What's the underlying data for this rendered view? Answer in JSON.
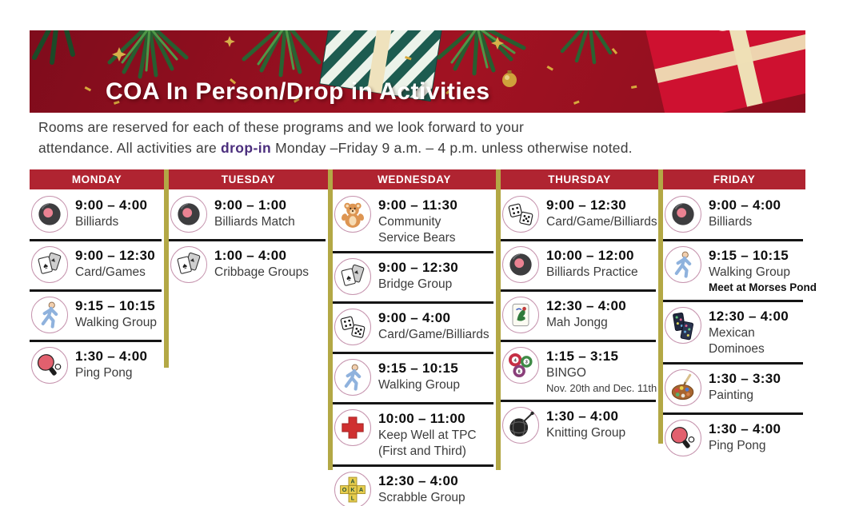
{
  "banner": {
    "title": "COA In Person/Drop in Activities"
  },
  "intro": {
    "line1": "Rooms are reserved for each of these programs and we look forward to your",
    "line2_pre": "attendance. All activities are ",
    "line2_highlight": "drop-in",
    "line2_post": " Monday –Friday 9 a.m. – 4 p.m. unless otherwise noted."
  },
  "schedule": {
    "days": [
      {
        "label": "MONDAY",
        "items": [
          {
            "icon": "billiard-ball",
            "time": "9:00 – 4:00",
            "label": "Billiards"
          },
          {
            "icon": "playing-cards",
            "time": "9:00 – 12:30",
            "label": "Card/Games"
          },
          {
            "icon": "walking-person",
            "time": "9:15 – 10:15",
            "label": "Walking Group"
          },
          {
            "icon": "ping-pong-paddle",
            "time": "1:30 – 4:00",
            "label": "Ping Pong"
          }
        ]
      },
      {
        "label": "TUESDAY",
        "items": [
          {
            "icon": "billiard-ball",
            "time": "9:00 – 1:00",
            "label": "Billiards Match"
          },
          {
            "icon": "playing-cards",
            "time": "1:00 – 4:00",
            "label": "Cribbage Groups"
          }
        ]
      },
      {
        "label": "WEDNESDAY",
        "items": [
          {
            "icon": "teddy-bear",
            "time": "9:00 – 11:30",
            "label": "Community\nService Bears"
          },
          {
            "icon": "playing-cards",
            "time": "9:00 – 12:30",
            "label": "Bridge Group"
          },
          {
            "icon": "dice",
            "time": "9:00 – 4:00",
            "label": "Card/Game/Billiards"
          },
          {
            "icon": "walking-person",
            "time": "9:15 – 10:15",
            "label": "Walking Group"
          },
          {
            "icon": "red-cross",
            "time": "10:00 – 11:00",
            "label": "Keep Well at TPC\n(First and Third)"
          },
          {
            "icon": "scrabble-tiles",
            "time": "12:30 – 4:00",
            "label": "Scrabble Group"
          }
        ]
      },
      {
        "label": "THURSDAY",
        "items": [
          {
            "icon": "dice",
            "time": "9:00 – 12:30",
            "label": "Card/Game/Billiards"
          },
          {
            "icon": "billiard-ball",
            "time": "10:00 – 12:00",
            "label": "Billiards Practice"
          },
          {
            "icon": "mahjong-tile",
            "time": "12:30 – 4:00",
            "label": "Mah Jongg"
          },
          {
            "icon": "bingo-balls",
            "time": "1:15 – 3:15",
            "label": "BINGO",
            "note": "Nov. 20th and Dec. 11th"
          },
          {
            "icon": "yarn-ball",
            "time": "1:30 – 4:00",
            "label": "Knitting Group"
          }
        ]
      },
      {
        "label": "FRIDAY",
        "items": [
          {
            "icon": "billiard-ball",
            "time": "9:00 – 4:00",
            "label": "Billiards"
          },
          {
            "icon": "walking-person",
            "time": "9:15 – 10:15",
            "label": "Walking Group",
            "note_bold": "Meet at Morses Pond"
          },
          {
            "icon": "dominoes",
            "time": "12:30 – 4:00",
            "label": "Mexican Dominoes"
          },
          {
            "icon": "paint-palette",
            "time": "1:30 – 3:30",
            "label": "Painting"
          },
          {
            "icon": "ping-pong-paddle",
            "time": "1:30 – 4:00",
            "label": "Ping Pong"
          }
        ]
      }
    ]
  },
  "colors": {
    "banner_red": "#8a0e1e",
    "header_red": "#b02431",
    "divider_olive": "#b3a845",
    "highlight_purple": "#4b2e7d",
    "separator_black": "#151515",
    "icon_ring_pink": "#c694ae"
  }
}
